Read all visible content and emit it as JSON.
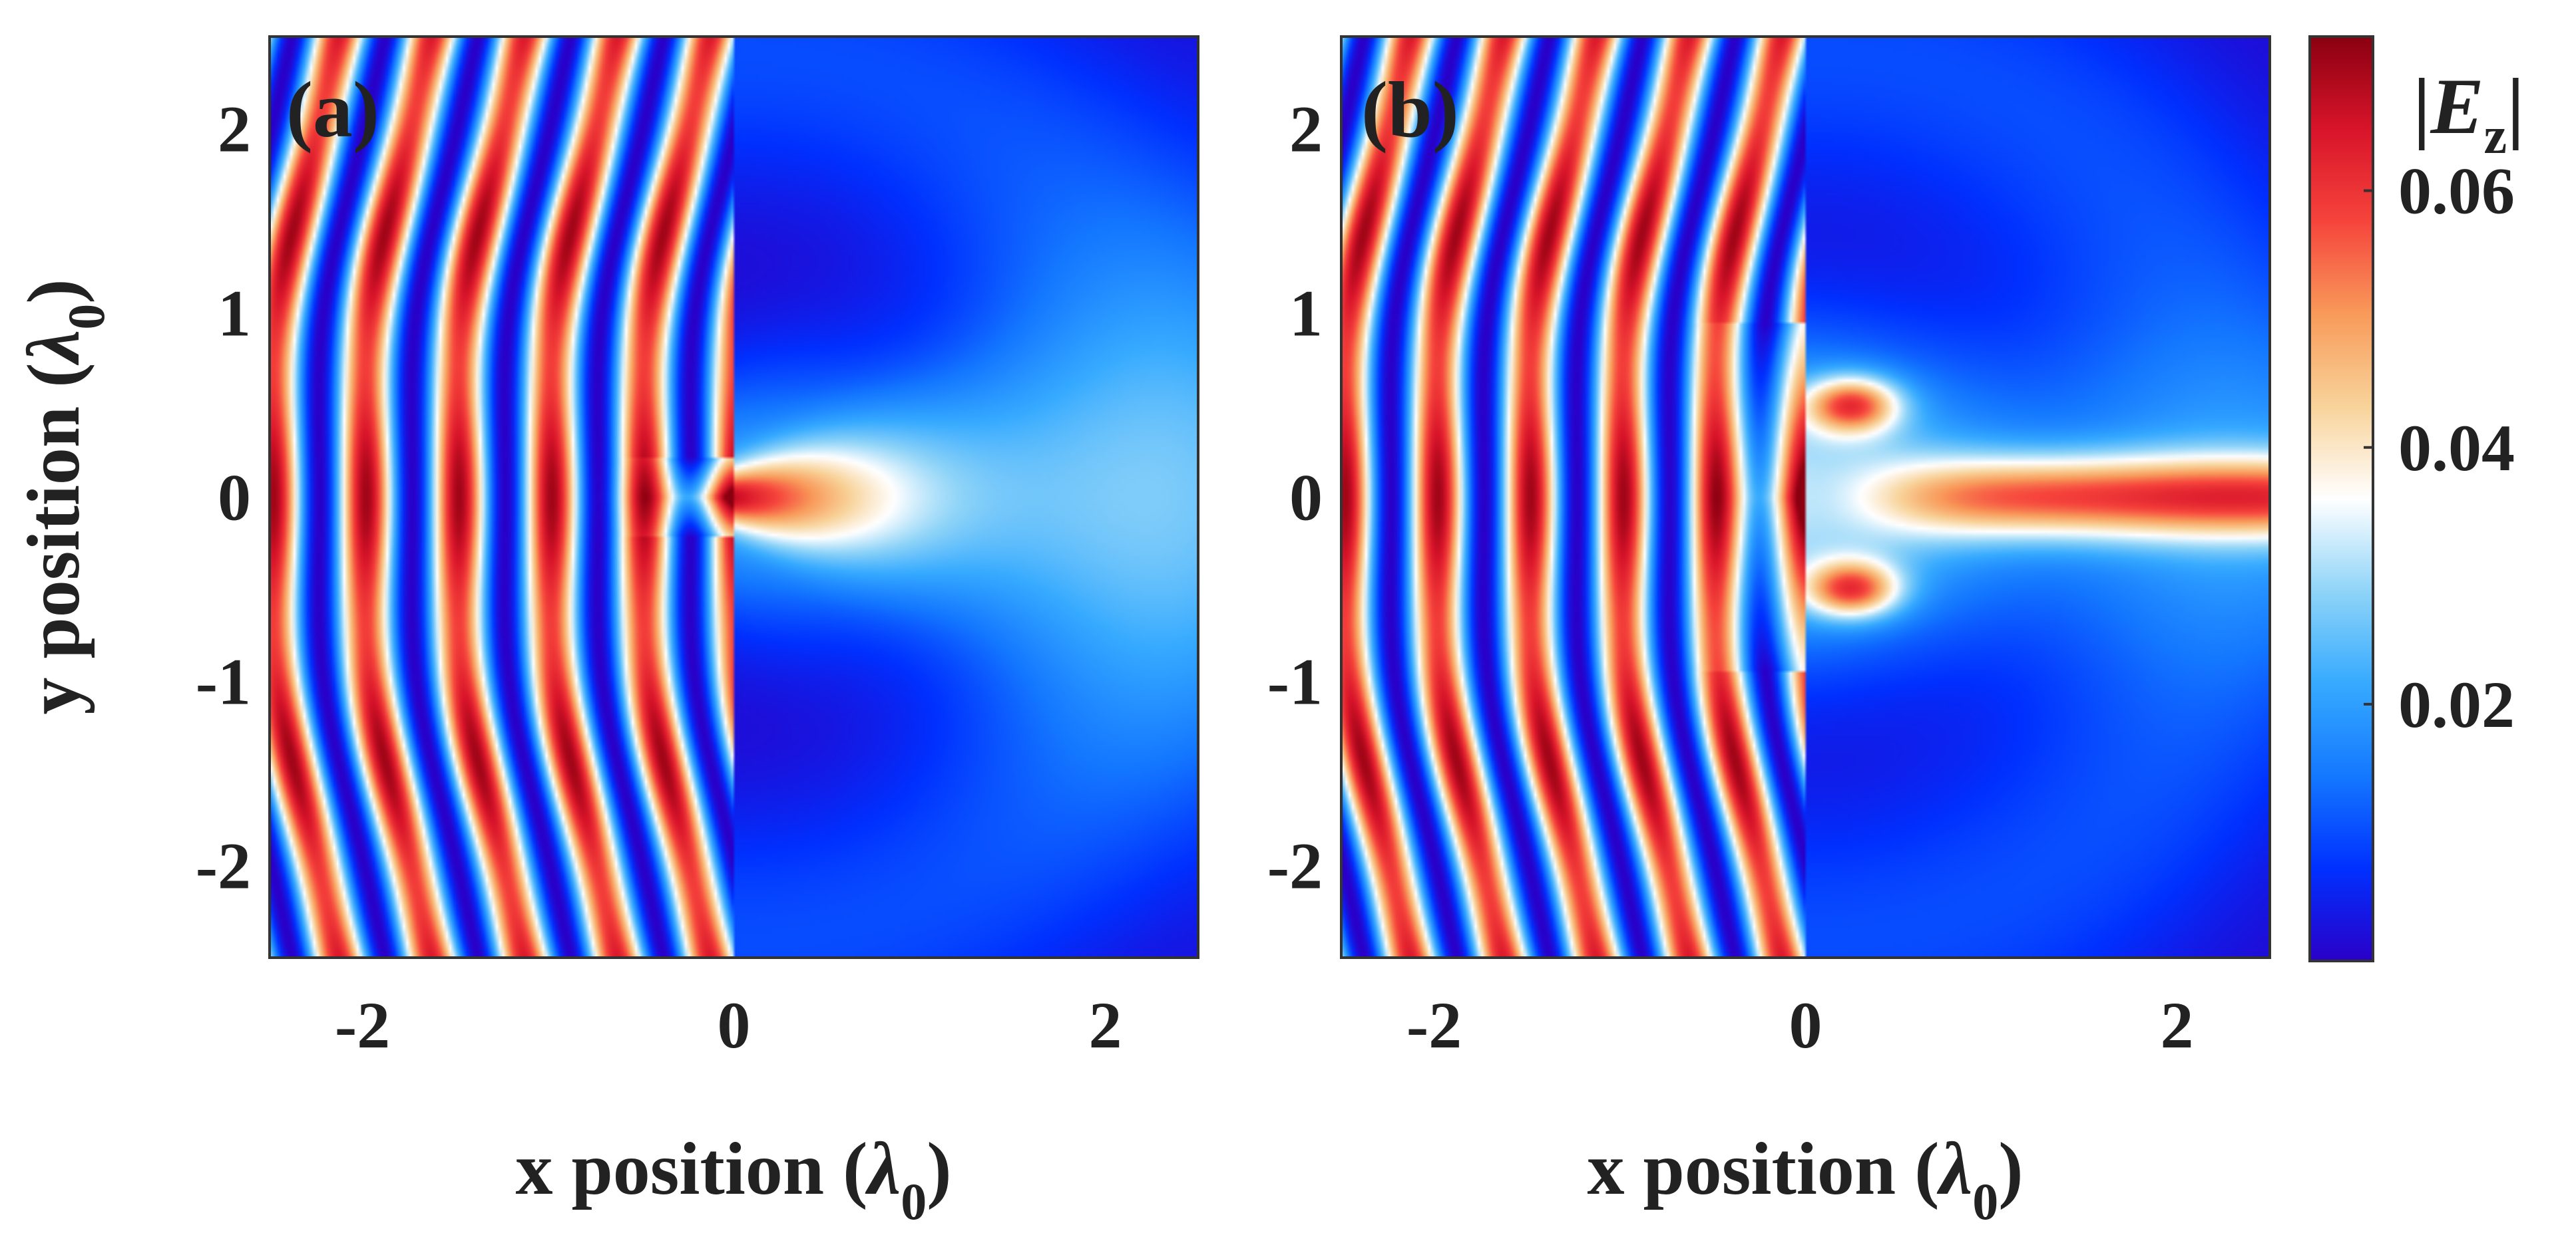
{
  "chart_data": [
    {
      "type": "heatmap",
      "panel_label": "(a)",
      "xlabel_text": "x position (",
      "xlabel_symbol": "λ",
      "xlabel_subscript": "0",
      "xlabel_close": ")",
      "ylabel_text": "y position (",
      "ylabel_symbol": "λ",
      "ylabel_subscript": "0",
      "ylabel_close": ")",
      "xlim": [
        -2.5,
        2.5
      ],
      "ylim": [
        -2.5,
        2.5
      ],
      "x_ticks": [
        -2,
        0,
        2
      ],
      "x_tick_labels": [
        "-2",
        "0",
        "2"
      ],
      "y_ticks": [
        2,
        1,
        0,
        -1,
        -2
      ],
      "y_tick_labels": [
        "2",
        "1",
        "0",
        "-1",
        "-2"
      ],
      "field": {
        "description": "incident field standing-wave fringes for x < 0, narrow transmitted beam through a slit centred at y = 0",
        "screen_x": 0,
        "fringe_period": 0.25,
        "aperture_halfwidth": 0.22,
        "transmitted_peak": 0.045,
        "incident_peak": 0.07
      }
    },
    {
      "type": "heatmap",
      "panel_label": "(b)",
      "xlabel_text": "x position (",
      "xlabel_symbol": "λ",
      "xlabel_subscript": "0",
      "xlabel_close": ")",
      "xlim": [
        -2.5,
        2.5
      ],
      "ylim": [
        -2.5,
        2.5
      ],
      "x_ticks": [
        -2,
        0,
        2
      ],
      "x_tick_labels": [
        "-2",
        "0",
        "2"
      ],
      "y_ticks": [
        2,
        1,
        0,
        -1,
        -2
      ],
      "y_tick_labels": [
        "2",
        "1",
        "0",
        "-1",
        "-2"
      ],
      "field": {
        "description": "incident fringes for x < 0 with wider aperture, transmitted collimated beam along y = 0",
        "screen_x": 0,
        "fringe_period": 0.25,
        "aperture_halfwidth": 0.95,
        "transmitted_peak": 0.045,
        "incident_peak": 0.07
      }
    }
  ],
  "colorbar": {
    "label_symbol": "E",
    "label_subscript": "z",
    "ticks": [
      0.02,
      0.04,
      0.06
    ],
    "tick_labels": [
      "0.02",
      "0.04",
      "0.06"
    ],
    "range": [
      0.0,
      0.072
    ],
    "colormap": [
      "#2a00c8",
      "#0030ff",
      "#1478ff",
      "#36aaff",
      "#8fd4f8",
      "#ffffff",
      "#f8d39a",
      "#f89a5a",
      "#f6443c",
      "#d8142a",
      "#8a0010"
    ]
  }
}
